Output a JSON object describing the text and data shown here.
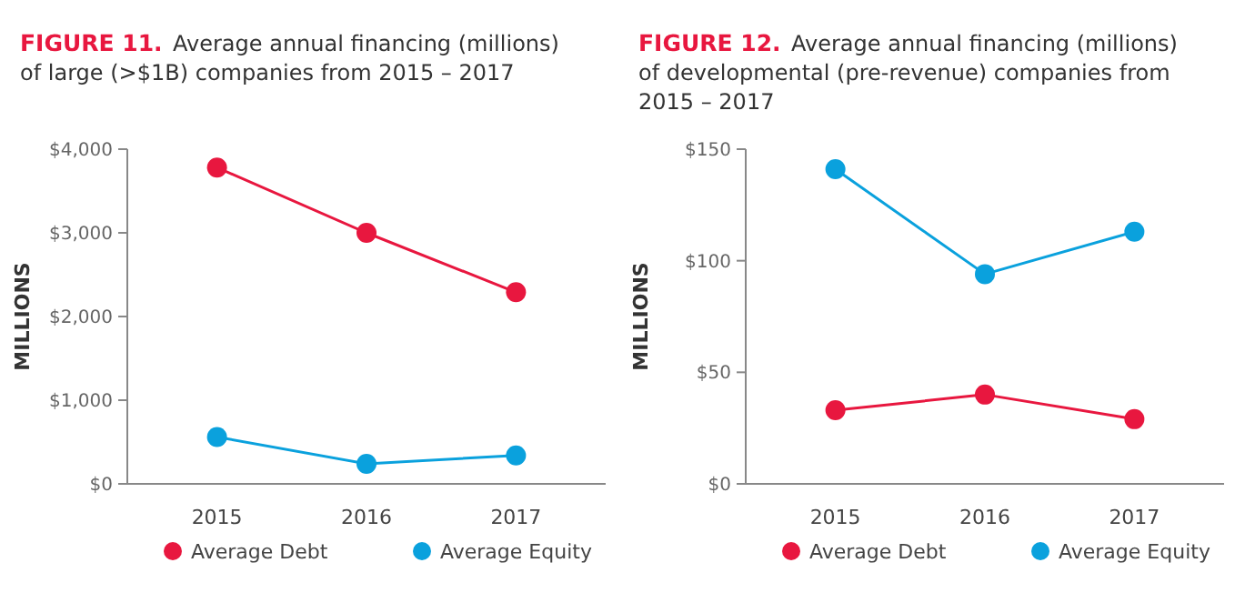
{
  "chart_data": [
    {
      "type": "line",
      "title": "FIGURE 11.",
      "subtitle": "Average annual financing (millions) of large (>$1B) companies from 2015 – 2017",
      "ylabel": "MILLIONS",
      "categories": [
        "2015",
        "2016",
        "2017"
      ],
      "series": [
        {
          "name": "Average Debt",
          "color": "#e8173f",
          "values": [
            3780,
            3000,
            2290
          ]
        },
        {
          "name": "Average Equity",
          "color": "#0aa1dd",
          "values": [
            560,
            240,
            340
          ]
        }
      ],
      "ylim": [
        0,
        4000
      ],
      "yticks": [
        {
          "value": 0,
          "label": "$0"
        },
        {
          "value": 1000,
          "label": "$1,000"
        },
        {
          "value": 2000,
          "label": "$2,000"
        },
        {
          "value": 3000,
          "label": "$3,000"
        },
        {
          "value": 4000,
          "label": "$4,000"
        }
      ],
      "marker": "circle",
      "legend": "bottom",
      "grid": false
    },
    {
      "type": "line",
      "title": "FIGURE 12.",
      "subtitle": "Average annual financing (millions) of developmental (pre-revenue) companies from 2015 – 2017",
      "ylabel": "MILLIONS",
      "categories": [
        "2015",
        "2016",
        "2017"
      ],
      "series": [
        {
          "name": "Average Debt",
          "color": "#e8173f",
          "values": [
            33,
            40,
            29
          ]
        },
        {
          "name": "Average Equity",
          "color": "#0aa1dd",
          "values": [
            141,
            94,
            113
          ]
        }
      ],
      "ylim": [
        0,
        150
      ],
      "yticks": [
        {
          "value": 0,
          "label": "$0"
        },
        {
          "value": 50,
          "label": "$50"
        },
        {
          "value": 100,
          "label": "$100"
        },
        {
          "value": 150,
          "label": "$150"
        }
      ],
      "marker": "circle",
      "legend": "bottom",
      "grid": false
    }
  ]
}
